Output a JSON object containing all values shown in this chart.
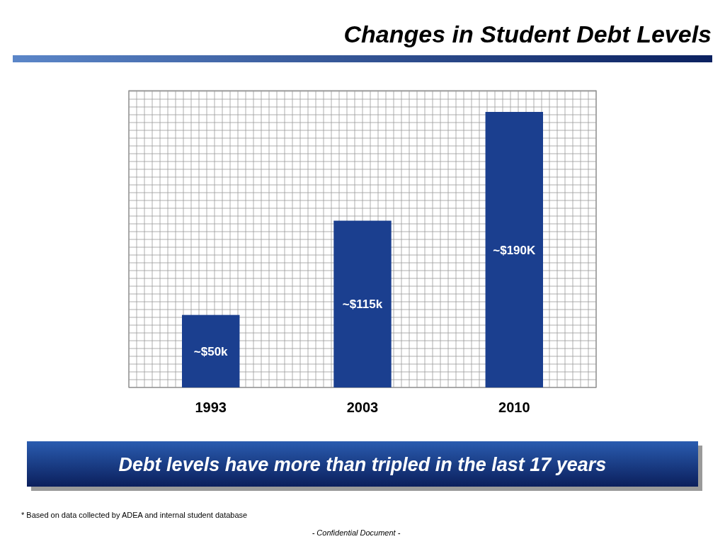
{
  "chart_data": {
    "type": "bar",
    "title": "Changes in Student Debt Levels",
    "categories": [
      "1993",
      "2003",
      "2010"
    ],
    "values": [
      50,
      115,
      190
    ],
    "value_labels": [
      "~$50k",
      "~$115k",
      "~$190K"
    ],
    "color": "#1b3f8f",
    "grid": true,
    "annotations": [
      "Debt levels have more than tripled in the last 17 years",
      "* Based on data collected by ADEA and internal student database",
      "- Confidential Document -"
    ]
  }
}
